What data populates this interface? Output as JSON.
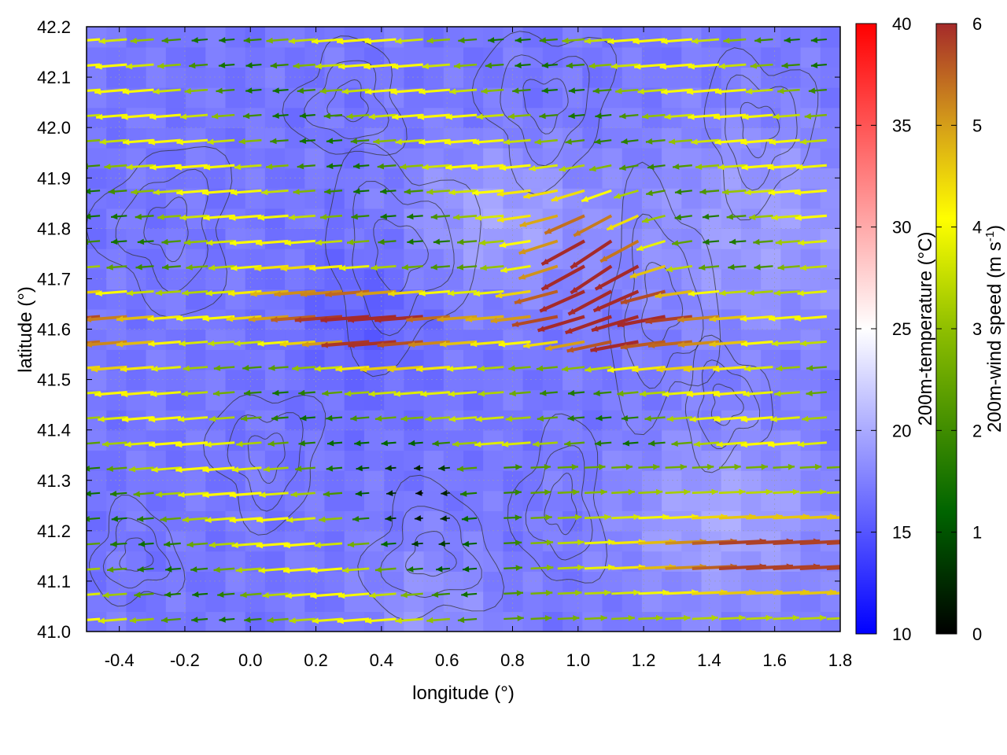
{
  "chart_data": {
    "type": "heatmap",
    "title": "",
    "xlabel": "longitude (°)",
    "ylabel": "latitude (°)",
    "xlim": [
      -0.5,
      1.8
    ],
    "ylim": [
      41.0,
      42.2
    ],
    "xticks": [
      -0.4,
      -0.2,
      0.0,
      0.2,
      0.4,
      0.6,
      0.8,
      1.0,
      1.2,
      1.4,
      1.6,
      1.8
    ],
    "xtick_labels": [
      "-0.4",
      "-0.2",
      "0.0",
      "0.2",
      "0.4",
      "0.6",
      "0.8",
      "1.0",
      "1.2",
      "1.4",
      "1.6",
      "1.8"
    ],
    "yticks": [
      41.0,
      41.1,
      41.2,
      41.3,
      41.4,
      41.5,
      41.6,
      41.7,
      41.8,
      41.9,
      42.0,
      42.1,
      42.2
    ],
    "ytick_labels": [
      "41.0",
      "41.1",
      "41.2",
      "41.3",
      "41.4",
      "41.5",
      "41.6",
      "41.7",
      "41.8",
      "41.9",
      "42.0",
      "42.1",
      "42.2"
    ],
    "grid": true,
    "layers": [
      "temperature heatmap",
      "terrain contours",
      "wind vectors"
    ],
    "temperature_colorbar": {
      "label": "200m-temperature (°C)",
      "range": [
        10,
        40
      ],
      "ticks": [
        "10",
        "15",
        "20",
        "25",
        "30",
        "35",
        "40"
      ],
      "colors": [
        "#0000ff",
        "#ffffff",
        "#ff0000"
      ]
    },
    "wind_colorbar": {
      "label_main": "200m-wind speed (m s",
      "label_sup": "-1",
      "label_end": ")",
      "range": [
        0,
        6
      ],
      "ticks": [
        "0",
        "1",
        "2",
        "3",
        "4",
        "5",
        "6"
      ],
      "colors": [
        "#000000",
        "#006400",
        "#8fbf00",
        "#ffff00",
        "#d39a1a",
        "#a52a2a"
      ]
    },
    "temperature_field_range_c": [
      15,
      22
    ],
    "wind_regimes": [
      {
        "region": "west half, all latitudes",
        "direction": "westward (easterly flow)",
        "speed_range": [
          1,
          6
        ]
      },
      {
        "region": "jet from lon 1.2, lat 41.85 curving to lon 0.4, lat 41.55",
        "direction": "south-west then west",
        "speed_range": [
          5,
          6
        ]
      },
      {
        "region": "south-east, lat 41.0–41.35, lon 0.8–1.8",
        "direction": "eastward",
        "speed_range": [
          2,
          6
        ]
      },
      {
        "region": "central basin, lon 0.3–0.8, lat 41.1–41.45",
        "direction": "variable, calm",
        "speed_range": [
          0,
          2
        ]
      }
    ]
  }
}
